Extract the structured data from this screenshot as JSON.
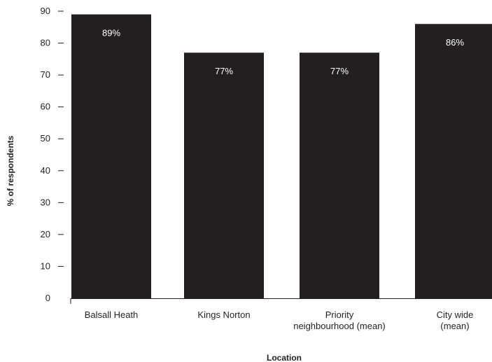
{
  "chart_data": {
    "type": "bar",
    "categories": [
      [
        "Balsall Heath"
      ],
      [
        "Kings Norton"
      ],
      [
        "Priority",
        "neighbourhood (mean)"
      ],
      [
        "City wide",
        "(mean)"
      ]
    ],
    "values": [
      89,
      77,
      77,
      86
    ],
    "data_labels": [
      "89%",
      "77%",
      "77%",
      "86%"
    ],
    "title": "",
    "xlabel": "Location",
    "ylabel": "% of respondents",
    "ylim": [
      0,
      90
    ],
    "yticks": [
      0,
      10,
      20,
      30,
      40,
      50,
      60,
      70,
      80,
      90
    ],
    "bar_color": "#231f20",
    "grid": false,
    "legend": "none"
  }
}
